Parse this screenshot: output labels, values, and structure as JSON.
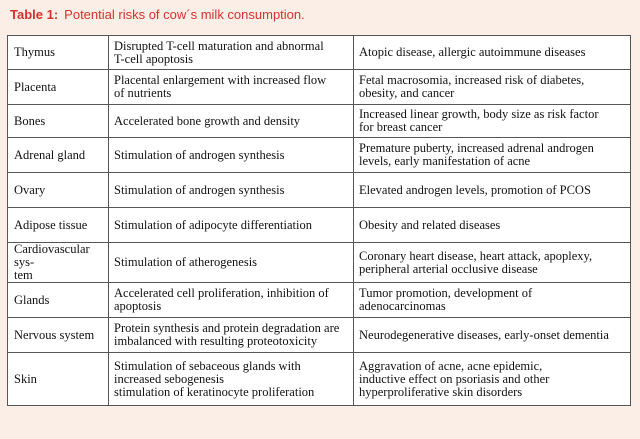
{
  "caption": {
    "label": "Table 1:",
    "title": "Potential risks of cow´s milk consumption."
  },
  "colors": {
    "background": "#fbeee6",
    "caption": "#d4322c",
    "table_background": "#ffffff",
    "border": "#555555"
  },
  "rows": [
    {
      "organ": "Thymus",
      "effect": "Disrupted T-cell maturation and abnormal\nT-cell apoptosis",
      "risk": "Atopic disease, allergic autoimmune diseases"
    },
    {
      "organ": "Placenta",
      "effect": "Placental enlargement with increased flow\nof nutrients",
      "risk": "Fetal macrosomia, increased risk of diabetes,\nobesity, and cancer"
    },
    {
      "organ": "Bones",
      "effect": "Accelerated bone growth and density",
      "risk": "Increased linear growth, body size as risk factor\nfor breast cancer"
    },
    {
      "organ": "Adrenal gland",
      "effect": "Stimulation of androgen synthesis",
      "risk": "Premature puberty, increased adrenal androgen\nlevels, early manifestation of acne"
    },
    {
      "organ": "Ovary",
      "effect": "Stimulation of androgen synthesis",
      "risk": "Elevated androgen levels, promotion of PCOS"
    },
    {
      "organ": "Adipose tissue",
      "effect": "Stimulation of adipocyte differentiation",
      "risk": "Obesity and related diseases"
    },
    {
      "organ": "Cardiovascular sys-\ntem",
      "effect": "Stimulation of atherogenesis",
      "risk": "Coronary heart disease, heart attack, apoplexy,\nperipheral arterial occlusive disease"
    },
    {
      "organ": "Glands",
      "effect": "Accelerated cell proliferation, inhibition of\napoptosis",
      "risk": "Tumor promotion, development of\nadenocarcinomas"
    },
    {
      "organ": "Nervous system",
      "effect": "Protein synthesis and protein degradation are\nimbalanced with resulting proteotoxicity",
      "risk": "Neurodegenerative diseases, early-onset dementia"
    },
    {
      "organ": "Skin",
      "effect": "Stimulation of sebaceous glands with\nincreased sebogenesis\nstimulation of keratinocyte proliferation",
      "risk": "Aggravation of acne, acne epidemic,\ninductive effect on psoriasis and other\nhyperproliferative skin disorders"
    }
  ]
}
